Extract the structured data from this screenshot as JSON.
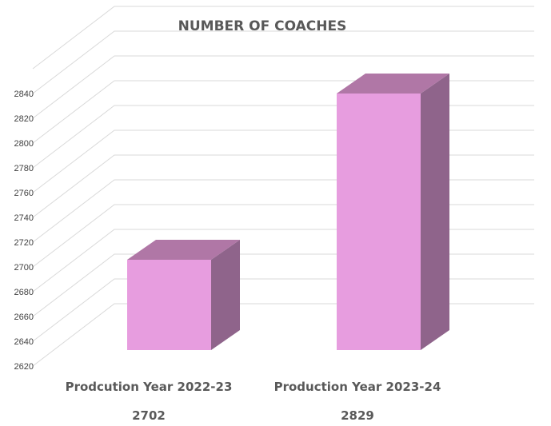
{
  "chart_data": {
    "type": "bar",
    "title": "NUMBER OF COACHES",
    "categories": [
      "Prodcution Year 2022-23",
      "Production Year 2023-24"
    ],
    "values": [
      2702,
      2829
    ],
    "value_labels": [
      "2702",
      "2829"
    ],
    "ylim": [
      2620,
      2840
    ],
    "yticks": [
      "2620",
      "2640",
      "2660",
      "2680",
      "2700",
      "2720",
      "2740",
      "2760",
      "2780",
      "2800",
      "2820",
      "2840"
    ],
    "grid": true,
    "legend": "none",
    "style": "3d-column",
    "colors": {
      "front": "#e79ddf",
      "top": "#b077a6",
      "side": "#8f648b"
    }
  }
}
